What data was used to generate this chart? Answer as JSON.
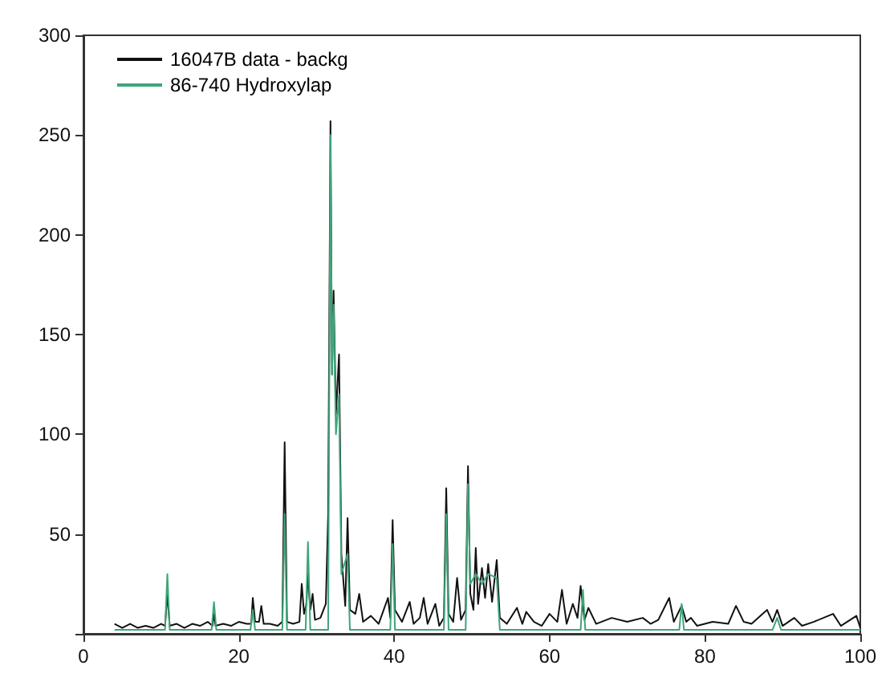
{
  "chart_data": {
    "type": "line",
    "xlim": [
      0,
      100
    ],
    "xticks": [
      0,
      20,
      40,
      60,
      80,
      100
    ],
    "ylim": [
      0,
      300
    ],
    "yticks": [
      {
        "value": 0,
        "label": null
      },
      50,
      100,
      150,
      200,
      250,
      300
    ],
    "grid": false,
    "legend": "top left",
    "marker": "none",
    "line_style": "solid",
    "series": [
      {
        "name": "16047B data - backg",
        "color": "#111111",
        "x": [
          4,
          5,
          6,
          7,
          8,
          9,
          10,
          10.5,
          10.8,
          11.1,
          12,
          13,
          14,
          15,
          16,
          16.6,
          16.8,
          17.0,
          18,
          19,
          20,
          21,
          21.6,
          21.8,
          22.1,
          22.6,
          22.9,
          23.2,
          24,
          25,
          25.6,
          25.9,
          26.2,
          27,
          27.8,
          28.1,
          28.4,
          28.7,
          28.9,
          29.2,
          29.5,
          29.8,
          30.5,
          31.2,
          31.5,
          31.8,
          32.0,
          32.2,
          32.5,
          32.9,
          33.2,
          33.7,
          34.0,
          34.3,
          35,
          35.5,
          36,
          37,
          38,
          39.2,
          39.5,
          39.8,
          40.1,
          41,
          42,
          42.5,
          43.3,
          43.8,
          44.3,
          45.3,
          45.8,
          46.4,
          46.7,
          47.0,
          47.6,
          48.1,
          48.6,
          49.2,
          49.5,
          49.8,
          50.2,
          50.5,
          50.8,
          51.3,
          51.7,
          52.1,
          52.6,
          53.2,
          53.6,
          54.5,
          55.8,
          56.5,
          57,
          58,
          59,
          60,
          61,
          61.6,
          62.2,
          63,
          63.6,
          64,
          64.5,
          65,
          66,
          68,
          70,
          72,
          73,
          74,
          75.4,
          76,
          77,
          77.6,
          78.2,
          79,
          81,
          83,
          84,
          85,
          86,
          88,
          88.7,
          89.3,
          90,
          91.5,
          92.5,
          94,
          96.5,
          97.5,
          99.5,
          100
        ],
        "values": [
          5,
          3,
          5,
          3,
          4,
          3,
          5,
          4,
          20,
          4,
          5,
          3,
          5,
          4,
          6,
          4,
          10,
          4,
          5,
          4,
          6,
          5,
          5,
          18,
          6,
          6,
          14,
          5,
          5,
          4,
          6,
          96,
          6,
          5,
          6,
          25,
          10,
          15,
          30,
          12,
          20,
          7,
          8,
          15,
          60,
          257,
          130,
          172,
          110,
          140,
          40,
          14,
          58,
          12,
          10,
          20,
          6,
          9,
          5,
          18,
          8,
          57,
          12,
          6,
          16,
          5,
          8,
          18,
          5,
          15,
          4,
          8,
          73,
          10,
          6,
          28,
          7,
          12,
          84,
          20,
          12,
          43,
          15,
          33,
          18,
          35,
          16,
          37,
          8,
          5,
          13,
          5,
          11,
          6,
          4,
          10,
          6,
          22,
          5,
          15,
          8,
          24,
          7,
          13,
          5,
          8,
          6,
          8,
          5,
          7,
          18,
          6,
          14,
          6,
          8,
          4,
          6,
          5,
          14,
          6,
          5,
          12,
          6,
          12,
          4,
          8,
          4,
          6,
          10,
          4,
          9,
          3
        ]
      },
      {
        "name": "86-740 Hydroxylap",
        "color": "#3fa57a",
        "x": [
          4,
          10.5,
          10.8,
          11.1,
          16.5,
          16.8,
          17.1,
          21.5,
          21.8,
          22.1,
          25.6,
          25.9,
          26.2,
          28.6,
          28.9,
          29.2,
          31.5,
          31.8,
          32.0,
          32.2,
          32.5,
          32.9,
          33.2,
          34.0,
          34.3,
          39.5,
          39.8,
          40.1,
          46.4,
          46.7,
          47.0,
          49.2,
          49.5,
          49.8,
          50.5,
          51.3,
          52.1,
          53.2,
          53.6,
          64,
          64.3,
          64.6,
          76.7,
          77,
          77.3,
          88.7,
          89.3,
          89.8,
          100
        ],
        "values": [
          2,
          2,
          30,
          2,
          2,
          16,
          2,
          2,
          12,
          2,
          2,
          60,
          2,
          2,
          46,
          2,
          2,
          250,
          130,
          165,
          100,
          120,
          30,
          40,
          2,
          2,
          45,
          2,
          2,
          60,
          2,
          2,
          75,
          25,
          30,
          25,
          30,
          28,
          2,
          2,
          22,
          2,
          2,
          15,
          2,
          2,
          8,
          2,
          2
        ]
      }
    ]
  }
}
